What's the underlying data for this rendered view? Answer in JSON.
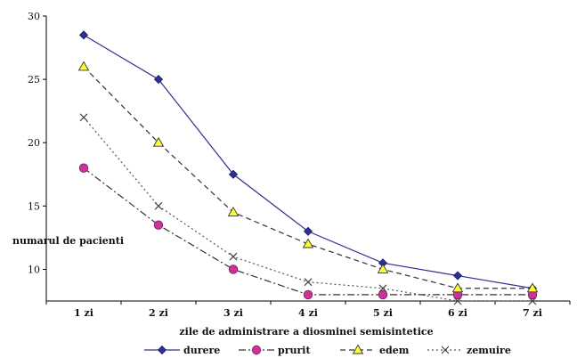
{
  "chart_data": {
    "type": "line",
    "title": "",
    "xlabel": "zile de  administrare a diosminei semisintetice",
    "ylabel": "numarul de pacienti",
    "categories": [
      "1 zi",
      "2 zi",
      "3 zi",
      "4 zi",
      "5 zi",
      "6 zi",
      "7 zi"
    ],
    "yticks": [
      "30",
      "25",
      "20",
      "15",
      "10"
    ],
    "ylim": [
      7.5,
      30
    ],
    "grid": false,
    "legend": "bottom",
    "series": [
      {
        "name": "durere",
        "values": [
          28.5,
          25,
          17.5,
          13,
          10.5,
          9.5,
          8.5
        ],
        "color": "#2e3192",
        "marker": "diamond",
        "dash": ""
      },
      {
        "name": "prurit",
        "values": [
          18,
          13.5,
          10,
          8,
          8,
          8,
          8
        ],
        "color": "#333333",
        "marker": "circle",
        "marker_color": "#cc3399",
        "dash": "8,3,2,3"
      },
      {
        "name": "edem",
        "values": [
          26,
          20,
          14.5,
          12,
          10,
          8.5,
          8.5
        ],
        "color": "#333333",
        "marker": "triangle",
        "marker_color": "#ffff33",
        "dash": "6,4"
      },
      {
        "name": "zemuire",
        "values": [
          22,
          15,
          11,
          9,
          8.5,
          7.5,
          7.5
        ],
        "color": "#555555",
        "marker": "x",
        "dash": "2,3"
      }
    ]
  }
}
